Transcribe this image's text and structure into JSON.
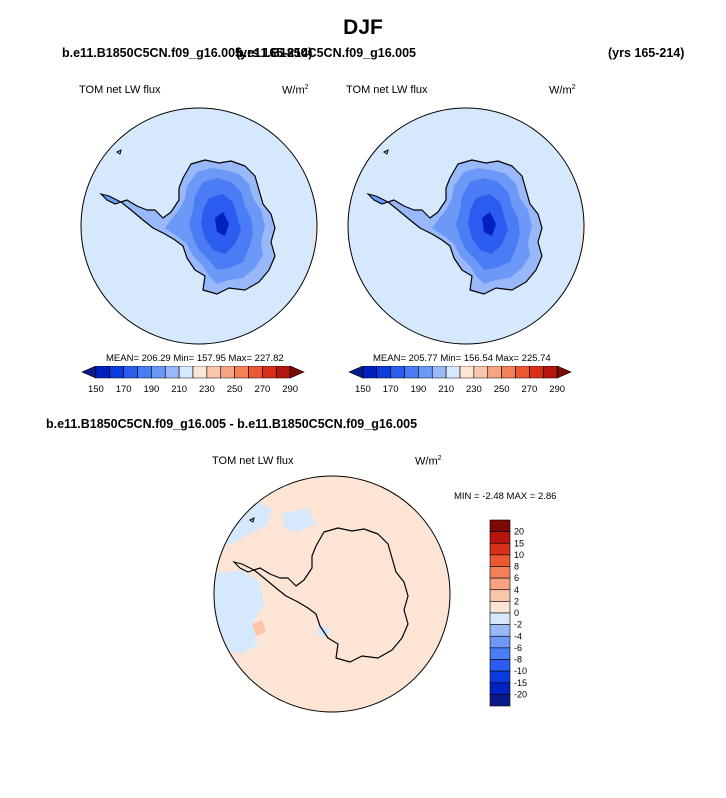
{
  "title": "DJF",
  "header": {
    "case_left": "b.e11.B1850C5CN.f09_g16.005",
    "years_left": "(yrs 165-214)",
    "case_right": "b.e11.B1850C5CN.f09_g16.005",
    "years_right": "(yrs 165-214)"
  },
  "diff_title": "b.e11.B1850C5CN.f09_g16.005 - b.e11.B1850C5CN.f09_g16.005",
  "chart_data": [
    {
      "type": "heatmap",
      "projection": "south polar stereographic",
      "variable": "TOM net LW flux",
      "units_base": "W/m",
      "units_exp": "2",
      "stats_text": "MEAN= 206.29  Min= 157.95  Max= 227.82",
      "mean": 206.29,
      "min": 157.95,
      "max": 227.82,
      "levels": [
        150,
        160,
        170,
        180,
        190,
        200,
        210,
        220,
        230,
        240,
        250,
        260,
        270,
        280,
        290
      ],
      "level_labels": [
        "150",
        "170",
        "190",
        "210",
        "230",
        "250",
        "270",
        "290"
      ],
      "colors": [
        "#0a1a8a",
        "#0020c0",
        "#0c3ce0",
        "#2a5cf0",
        "#4a7cf5",
        "#6c98f7",
        "#98b8fa",
        "#d6e8fc",
        "#fde5d5",
        "#f9c6ab",
        "#f7a482",
        "#f38157",
        "#ec5832",
        "#d9301a",
        "#b5150d",
        "#7c0a06"
      ],
      "colorbar_orientation": "horizontal"
    },
    {
      "type": "heatmap",
      "projection": "south polar stereographic",
      "variable": "TOM net LW flux",
      "units_base": "W/m",
      "units_exp": "2",
      "stats_text": "MEAN= 205.77  Min= 156.54  Max= 225.74",
      "mean": 205.77,
      "min": 156.54,
      "max": 225.74,
      "levels": [
        150,
        160,
        170,
        180,
        190,
        200,
        210,
        220,
        230,
        240,
        250,
        260,
        270,
        280,
        290
      ],
      "level_labels": [
        "150",
        "170",
        "190",
        "210",
        "230",
        "250",
        "270",
        "290"
      ],
      "colors": [
        "#0a1a8a",
        "#0020c0",
        "#0c3ce0",
        "#2a5cf0",
        "#4a7cf5",
        "#6c98f7",
        "#98b8fa",
        "#d6e8fc",
        "#fde5d5",
        "#f9c6ab",
        "#f7a482",
        "#f38157",
        "#ec5832",
        "#d9301a",
        "#b5150d",
        "#7c0a06"
      ],
      "colorbar_orientation": "horizontal"
    },
    {
      "type": "heatmap",
      "projection": "south polar stereographic",
      "variable": "TOM net LW flux",
      "units_base": "W/m",
      "units_exp": "2",
      "stats_text": "MIN =  -2.48 MAX =  2.86",
      "min": -2.48,
      "max": 2.86,
      "levels": [
        -20,
        -15,
        -10,
        -8,
        -6,
        -4,
        -2,
        0,
        2,
        4,
        6,
        8,
        10,
        15,
        20
      ],
      "level_labels": [
        "20",
        "15",
        "10",
        "8",
        "6",
        "4",
        "2",
        "0",
        "-2",
        "-4",
        "-6",
        "-8",
        "-10",
        "-15",
        "-20"
      ],
      "colors": [
        "#7c0a06",
        "#b5150d",
        "#d9301a",
        "#ec5832",
        "#f38157",
        "#f7a482",
        "#f9c6ab",
        "#fde5d5",
        "#d6e8fc",
        "#98b8fa",
        "#6c98f7",
        "#4a7cf5",
        "#2a5cf0",
        "#0c3ce0",
        "#0020c0",
        "#0a1a8a"
      ],
      "colorbar_orientation": "vertical"
    }
  ]
}
